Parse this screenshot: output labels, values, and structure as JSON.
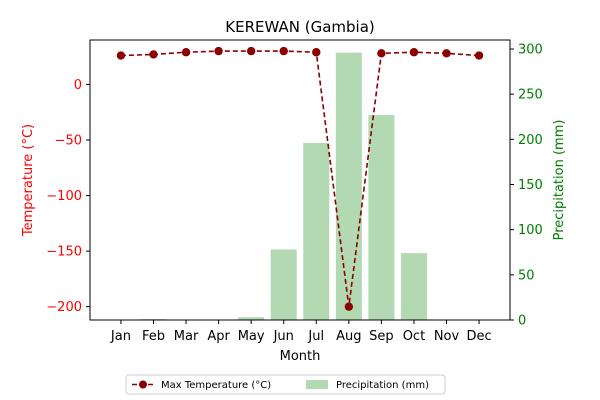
{
  "chart_data": {
    "type": "bar+line",
    "title": "KEREWAN (Gambia)",
    "xlabel": "Month",
    "ylabel_left": "Temperature (°C)",
    "ylabel_right": "Precipitation (mm)",
    "categories": [
      "Jan",
      "Feb",
      "Mar",
      "Apr",
      "May",
      "Jun",
      "Jul",
      "Aug",
      "Sep",
      "Oct",
      "Nov",
      "Dec"
    ],
    "left_axis": {
      "ylim": [
        -212,
        40
      ],
      "ticks": [
        0,
        -50,
        -100,
        -150,
        -200
      ],
      "tick_labels": [
        "0",
        "−50",
        "−100",
        "−150",
        "−200"
      ],
      "color": "#ff0000"
    },
    "right_axis": {
      "ylim": [
        0,
        310
      ],
      "ticks": [
        0,
        50,
        100,
        150,
        200,
        250,
        300
      ],
      "tick_labels": [
        "0",
        "50",
        "100",
        "150",
        "200",
        "250",
        "300"
      ],
      "color": "#008000"
    },
    "series": [
      {
        "name": "Max Temperature (°C)",
        "chart_type": "line",
        "axis": "left",
        "color": "#8b0000",
        "line_style": "dashed",
        "marker": "circle",
        "values": [
          26,
          27,
          29,
          30,
          30,
          30,
          29,
          -200,
          28,
          29,
          28,
          26
        ]
      },
      {
        "name": "Precipitation (mm)",
        "chart_type": "bar",
        "axis": "right",
        "color": "#b2d9b2",
        "values": [
          0,
          1,
          0,
          0,
          3,
          78,
          196,
          296,
          227,
          74,
          0,
          0
        ]
      }
    ],
    "grid": false,
    "legend": {
      "placement": "bottom-center",
      "columns": 2
    }
  }
}
